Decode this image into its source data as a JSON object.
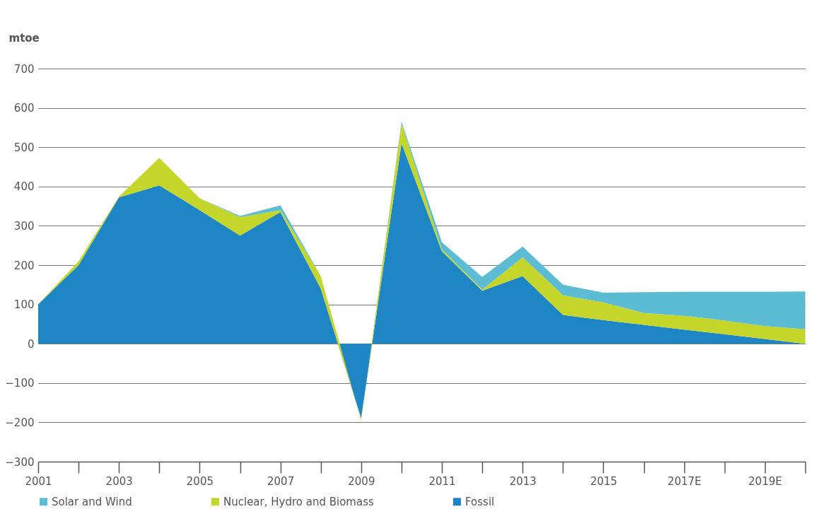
{
  "chart_data": {
    "type": "area",
    "stacked": true,
    "ylabel": "mtoe",
    "categories": [
      "2001",
      null,
      "2003",
      null,
      "2005",
      null,
      "2007",
      null,
      "2009",
      null,
      "2011",
      null,
      "2013",
      null,
      "2015",
      null,
      "2017E",
      null,
      "2019E",
      null
    ],
    "series": [
      {
        "name": "Fossil",
        "color": "#1f86c6",
        "values": [
          100,
          200,
          372,
          403,
          340,
          275,
          335,
          140,
          -190,
          510,
          235,
          135,
          172,
          73,
          60,
          48,
          36,
          24,
          12,
          0
        ]
      },
      {
        "name": "Nuclear, Hydro and Biomass",
        "color": "#c5d62a",
        "values": [
          0,
          10,
          2,
          70,
          30,
          47,
          5,
          32,
          -5,
          50,
          5,
          3,
          48,
          50,
          45,
          30,
          35,
          35,
          33,
          37
        ]
      },
      {
        "name": "Solar and Wind",
        "color": "#5bbcd3",
        "values": [
          0,
          0,
          0,
          0,
          0,
          3,
          12,
          0,
          0,
          5,
          18,
          32,
          27,
          27,
          25,
          53,
          61,
          73,
          87,
          96
        ]
      }
    ],
    "ylim": [
      -300,
      700
    ],
    "yticks": [
      -300,
      -200,
      -100,
      0,
      100,
      200,
      300,
      400,
      500,
      600,
      700
    ],
    "grid": "y",
    "legend": "bottom"
  }
}
